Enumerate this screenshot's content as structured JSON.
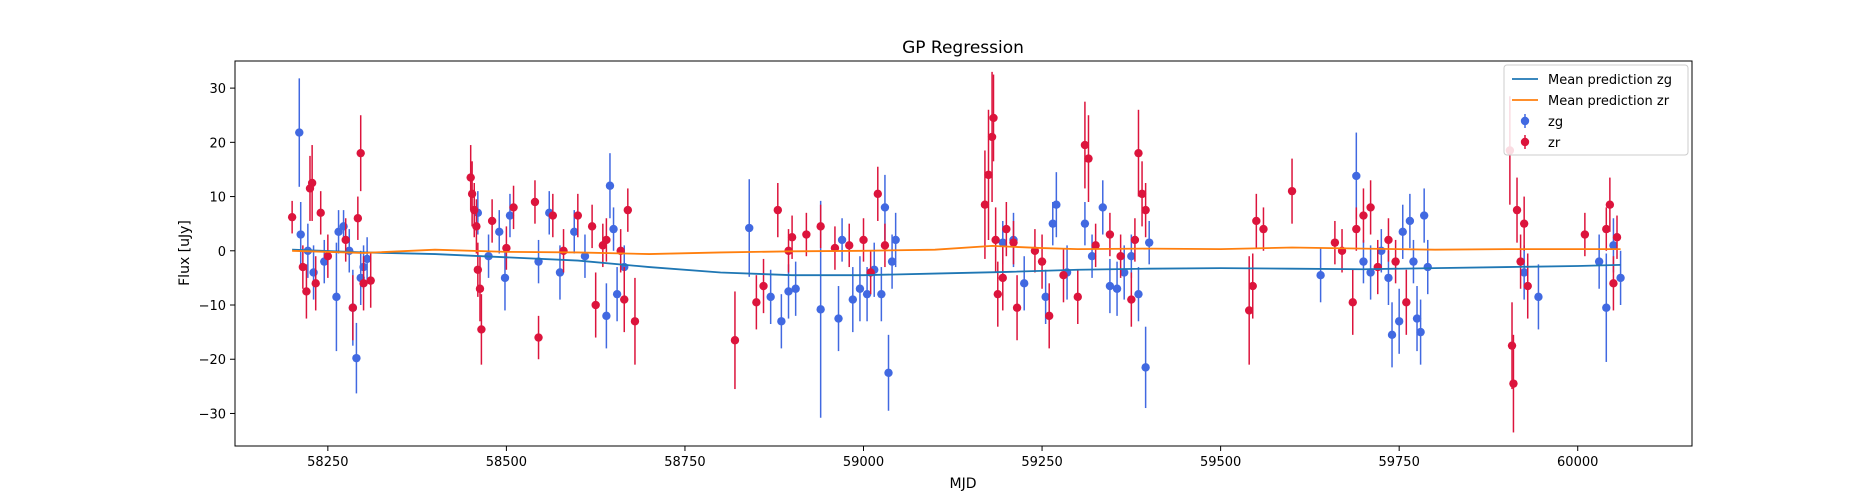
{
  "chart_data": {
    "type": "scatter",
    "title": "GP Regression",
    "xlabel": "MJD",
    "ylabel": "Flux [uJy]",
    "xlim": [
      58120,
      60160
    ],
    "ylim": [
      -36,
      35
    ],
    "xticks": [
      58250,
      58500,
      58750,
      59000,
      59250,
      59500,
      59750,
      60000
    ],
    "yticks": [
      -30,
      -20,
      -10,
      0,
      10,
      20,
      30
    ],
    "grid": false,
    "legend_position": "top-right",
    "colors": {
      "mean_zg": "#1f77b4",
      "mean_zr": "#ff7f0e",
      "zg": "#4169e1",
      "zr": "#dc143c"
    },
    "series": [
      {
        "name": "Mean prediction zg",
        "kind": "line",
        "x": [
          58200,
          58300,
          58400,
          58500,
          58600,
          58700,
          58800,
          58900,
          59000,
          59100,
          59200,
          59300,
          59400,
          59500,
          59600,
          59700,
          59800,
          59900,
          60000,
          60060
        ],
        "y": [
          0.2,
          -0.3,
          -0.6,
          -1.2,
          -1.8,
          -3.0,
          -4.0,
          -4.5,
          -4.5,
          -4.2,
          -3.9,
          -3.5,
          -3.3,
          -3.2,
          -3.3,
          -3.4,
          -3.2,
          -3.0,
          -2.8,
          -2.6
        ]
      },
      {
        "name": "Mean prediction zr",
        "kind": "line",
        "x": [
          58200,
          58300,
          58400,
          58500,
          58600,
          58700,
          58800,
          58900,
          59000,
          59100,
          59180,
          59250,
          59300,
          59400,
          59500,
          59600,
          59700,
          59800,
          59900,
          60000,
          60060
        ],
        "y": [
          0.0,
          -0.4,
          0.2,
          -0.2,
          -0.3,
          -0.6,
          -0.3,
          -0.1,
          0.0,
          0.2,
          0.9,
          0.5,
          0.3,
          0.4,
          0.3,
          0.6,
          0.4,
          0.2,
          0.3,
          0.3,
          0.3
        ]
      },
      {
        "name": "zg",
        "kind": "errorbar",
        "points": [
          [
            58210,
            21.8,
            10
          ],
          [
            58212,
            3,
            6
          ],
          [
            58222,
            0,
            5
          ],
          [
            58230,
            -4,
            5
          ],
          [
            58245,
            -2,
            4
          ],
          [
            58262,
            -8.5,
            10
          ],
          [
            58265,
            3.5,
            4
          ],
          [
            58272,
            4.5,
            3
          ],
          [
            58280,
            0,
            4
          ],
          [
            58285,
            -10.5,
            7
          ],
          [
            58290,
            -19.8,
            6.5
          ],
          [
            58296,
            -5,
            5
          ],
          [
            58300,
            -3,
            4
          ],
          [
            58305,
            -1.5,
            4
          ],
          [
            58460,
            7,
            4
          ],
          [
            58475,
            -1,
            4
          ],
          [
            58490,
            3.5,
            4
          ],
          [
            58498,
            -5,
            6
          ],
          [
            58505,
            6.5,
            4
          ],
          [
            58545,
            -2,
            4
          ],
          [
            58560,
            7,
            4
          ],
          [
            58575,
            -4,
            5
          ],
          [
            58595,
            3.5,
            4
          ],
          [
            58610,
            -1,
            4
          ],
          [
            58640,
            -12,
            6
          ],
          [
            58645,
            12,
            6
          ],
          [
            58650,
            4,
            4
          ],
          [
            58655,
            -8,
            5
          ],
          [
            58665,
            -3,
            4
          ],
          [
            58840,
            4.2,
            9
          ],
          [
            58870,
            -8.5,
            5
          ],
          [
            58885,
            -13,
            5
          ],
          [
            58895,
            -7.5,
            5
          ],
          [
            58905,
            -7,
            5
          ],
          [
            58940,
            -10.8,
            20
          ],
          [
            58965,
            -12.5,
            6
          ],
          [
            58970,
            2,
            4
          ],
          [
            58985,
            -9,
            6
          ],
          [
            58995,
            -7,
            6
          ],
          [
            59005,
            -8,
            5
          ],
          [
            59015,
            -3.5,
            5
          ],
          [
            59025,
            -8,
            5
          ],
          [
            59030,
            8,
            6
          ],
          [
            59040,
            -2,
            5
          ],
          [
            59035,
            -22.5,
            7
          ],
          [
            59045,
            2,
            5
          ],
          [
            59195,
            1.5,
            4
          ],
          [
            59210,
            2,
            5
          ],
          [
            59225,
            -6,
            5
          ],
          [
            59255,
            -8.5,
            5
          ],
          [
            59265,
            5,
            4
          ],
          [
            59270,
            8.5,
            6
          ],
          [
            59285,
            -4,
            5
          ],
          [
            59310,
            5,
            4
          ],
          [
            59320,
            -1,
            4
          ],
          [
            59335,
            8,
            5
          ],
          [
            59345,
            -6.5,
            5
          ],
          [
            59355,
            -7,
            5
          ],
          [
            59365,
            -4,
            5
          ],
          [
            59375,
            -1,
            4
          ],
          [
            59385,
            -8,
            5
          ],
          [
            59395,
            -21.5,
            7.5
          ],
          [
            59400,
            1.5,
            4
          ],
          [
            59640,
            -4.5,
            5
          ],
          [
            59690,
            13.8,
            8
          ],
          [
            59700,
            -2,
            4
          ],
          [
            59710,
            -4,
            5
          ],
          [
            59725,
            0,
            4
          ],
          [
            59735,
            -5,
            5
          ],
          [
            59740,
            -15.5,
            6
          ],
          [
            59750,
            -13,
            6
          ],
          [
            59755,
            3.5,
            5
          ],
          [
            59765,
            5.5,
            5
          ],
          [
            59770,
            -2,
            4
          ],
          [
            59775,
            -12.5,
            6
          ],
          [
            59780,
            -15,
            6
          ],
          [
            59785,
            6.5,
            5
          ],
          [
            59790,
            -3,
            5
          ],
          [
            59925,
            -4,
            5
          ],
          [
            59945,
            -8.5,
            6
          ],
          [
            60030,
            -2,
            5
          ],
          [
            60040,
            -10.5,
            10
          ],
          [
            60050,
            1,
            5
          ],
          [
            60060,
            -5,
            5
          ]
        ]
      },
      {
        "name": "zr",
        "kind": "errorbar",
        "points": [
          [
            58200,
            6.2,
            3
          ],
          [
            58215,
            -3,
            4
          ],
          [
            58220,
            -7.5,
            5
          ],
          [
            58225,
            11.5,
            6
          ],
          [
            58228,
            12.5,
            7
          ],
          [
            58233,
            -6,
            5
          ],
          [
            58240,
            7,
            4
          ],
          [
            58250,
            -1,
            4
          ],
          [
            58275,
            2,
            4
          ],
          [
            58285,
            -10.5,
            6
          ],
          [
            58292,
            6,
            4
          ],
          [
            58296,
            18,
            7
          ],
          [
            58300,
            -6,
            5
          ],
          [
            58310,
            -5.5,
            5
          ],
          [
            58450,
            13.5,
            6
          ],
          [
            58452,
            10.5,
            6
          ],
          [
            58455,
            7.5,
            5
          ],
          [
            58458,
            4.5,
            5
          ],
          [
            58460,
            -3.5,
            5
          ],
          [
            58463,
            -7,
            6
          ],
          [
            58465,
            -14.5,
            6.5
          ],
          [
            58480,
            5.5,
            4
          ],
          [
            58500,
            0.5,
            4
          ],
          [
            58510,
            8,
            4
          ],
          [
            58540,
            9,
            4
          ],
          [
            58545,
            -16,
            4
          ],
          [
            58565,
            6.5,
            4
          ],
          [
            58580,
            0,
            4
          ],
          [
            58600,
            6.5,
            4
          ],
          [
            58620,
            4.5,
            4
          ],
          [
            58625,
            -10,
            6
          ],
          [
            58635,
            1,
            4
          ],
          [
            58640,
            2,
            4
          ],
          [
            58660,
            0,
            4
          ],
          [
            58665,
            -9,
            6
          ],
          [
            58670,
            7.5,
            4
          ],
          [
            58680,
            -13,
            8
          ],
          [
            58820,
            -16.5,
            9
          ],
          [
            58850,
            -9.5,
            5
          ],
          [
            58860,
            -6.5,
            5
          ],
          [
            58880,
            7.5,
            5
          ],
          [
            58895,
            0,
            4
          ],
          [
            58900,
            2.5,
            4
          ],
          [
            58920,
            3,
            4
          ],
          [
            58940,
            4.5,
            4
          ],
          [
            58960,
            0.5,
            4
          ],
          [
            58980,
            1,
            4
          ],
          [
            59000,
            2,
            4
          ],
          [
            59010,
            -4,
            4
          ],
          [
            59020,
            10.5,
            5
          ],
          [
            59030,
            1,
            4
          ],
          [
            59170,
            8.5,
            10
          ],
          [
            59175,
            14,
            12
          ],
          [
            59180,
            21,
            12
          ],
          [
            59182,
            24.5,
            8
          ],
          [
            59185,
            2,
            6
          ],
          [
            59188,
            -8,
            6
          ],
          [
            59195,
            -5,
            6
          ],
          [
            59200,
            4,
            5
          ],
          [
            59210,
            1.5,
            4
          ],
          [
            59215,
            -10.5,
            6
          ],
          [
            59240,
            0,
            4
          ],
          [
            59250,
            -2,
            5
          ],
          [
            59260,
            -12,
            6
          ],
          [
            59280,
            -4.5,
            5
          ],
          [
            59300,
            -8.5,
            5
          ],
          [
            59310,
            19.5,
            8
          ],
          [
            59315,
            17,
            8
          ],
          [
            59325,
            1,
            4
          ],
          [
            59345,
            3,
            4
          ],
          [
            59360,
            -1,
            4
          ],
          [
            59375,
            -9,
            5
          ],
          [
            59380,
            2,
            4
          ],
          [
            59385,
            18,
            8
          ],
          [
            59390,
            10.5,
            6
          ],
          [
            59395,
            7.5,
            5
          ],
          [
            59540,
            -11,
            10
          ],
          [
            59545,
            -6.5,
            6
          ],
          [
            59550,
            5.5,
            5
          ],
          [
            59560,
            4,
            4
          ],
          [
            59600,
            11,
            6
          ],
          [
            59660,
            1.5,
            4
          ],
          [
            59670,
            0,
            4
          ],
          [
            59685,
            -9.5,
            6
          ],
          [
            59690,
            4,
            4
          ],
          [
            59700,
            6.5,
            5
          ],
          [
            59710,
            8,
            5
          ],
          [
            59720,
            -3,
            5
          ],
          [
            59735,
            2,
            4
          ],
          [
            59745,
            -2,
            4
          ],
          [
            59760,
            -9.5,
            6
          ],
          [
            59905,
            18.5,
            10
          ],
          [
            59908,
            -17.5,
            8
          ],
          [
            59910,
            -24.5,
            9
          ],
          [
            59915,
            7.5,
            6
          ],
          [
            59920,
            -2,
            5
          ],
          [
            59925,
            5,
            5
          ],
          [
            59930,
            -6.5,
            6
          ],
          [
            60010,
            3,
            4
          ],
          [
            60040,
            4,
            4
          ],
          [
            60045,
            8.5,
            5
          ],
          [
            60050,
            -6,
            5
          ],
          [
            60055,
            2.5,
            4
          ]
        ]
      }
    ]
  }
}
